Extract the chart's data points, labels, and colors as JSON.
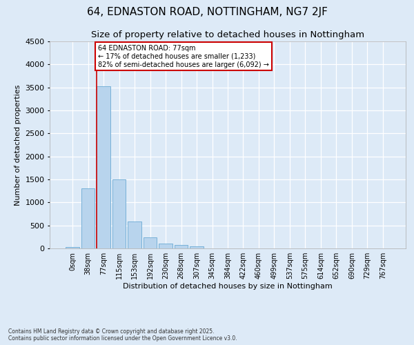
{
  "title_line1": "64, EDNASTON ROAD, NOTTINGHAM, NG7 2JF",
  "title_line2": "Size of property relative to detached houses in Nottingham",
  "xlabel": "Distribution of detached houses by size in Nottingham",
  "ylabel": "Number of detached properties",
  "bar_color": "#b8d4ed",
  "bar_edge_color": "#6aaad4",
  "vline_color": "#cc0000",
  "vline_x_index": 2,
  "annotation_text": "64 EDNASTON ROAD: 77sqm\n← 17% of detached houses are smaller (1,233)\n82% of semi-detached houses are larger (6,092) →",
  "annotation_box_color": "#cc0000",
  "background_color": "#ddeaf7",
  "grid_color": "#ffffff",
  "categories": [
    "0sqm",
    "38sqm",
    "77sqm",
    "115sqm",
    "153sqm",
    "192sqm",
    "230sqm",
    "268sqm",
    "307sqm",
    "345sqm",
    "384sqm",
    "422sqm",
    "460sqm",
    "499sqm",
    "537sqm",
    "575sqm",
    "614sqm",
    "652sqm",
    "690sqm",
    "729sqm",
    "767sqm"
  ],
  "values": [
    30,
    1300,
    3530,
    1500,
    590,
    240,
    110,
    75,
    45,
    0,
    0,
    0,
    0,
    0,
    0,
    0,
    0,
    0,
    0,
    0,
    0
  ],
  "ylim": [
    0,
    4500
  ],
  "yticks": [
    0,
    500,
    1000,
    1500,
    2000,
    2500,
    3000,
    3500,
    4000,
    4500
  ],
  "footer_text": "Contains HM Land Registry data © Crown copyright and database right 2025.\nContains public sector information licensed under the Open Government Licence v3.0.",
  "title_fontsize": 11,
  "subtitle_fontsize": 9.5,
  "label_fontsize": 8,
  "tick_fontsize": 7
}
